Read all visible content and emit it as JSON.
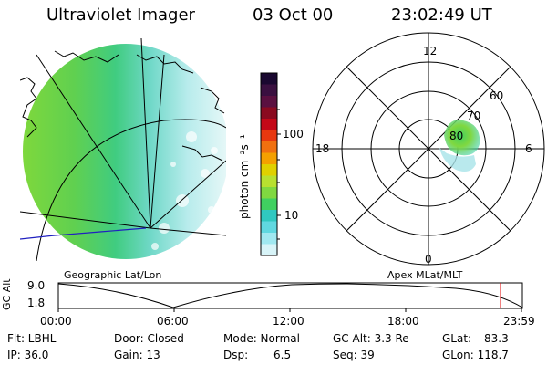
{
  "header": {
    "instrument": "Ultraviolet Imager",
    "date": "03 Oct 00",
    "time": "23:02:49 UT"
  },
  "colorbar": {
    "unit_label": "photon cm⁻²s⁻¹",
    "tick_100": "100",
    "tick_10": "10",
    "colors_top_to_bottom": [
      "#1a0830",
      "#3a1040",
      "#5a1040",
      "#8a0a20",
      "#c40818",
      "#e83810",
      "#f07010",
      "#f4a000",
      "#e0d000",
      "#b8e030",
      "#80d840",
      "#40d060",
      "#30c8c0",
      "#60d8e0",
      "#a0e8f0",
      "#d8f4f8"
    ]
  },
  "geo_map": {
    "caption": "Geographic Lat/Lon"
  },
  "polar_plot": {
    "caption": "Apex MLat/MLT",
    "mlt_12": "12",
    "mlt_18": "18",
    "mlt_6": "6",
    "mlt_0": "0",
    "lat_60": "60",
    "lat_70": "70",
    "lat_80": "80"
  },
  "altitude_plot": {
    "ylabel": "GC Alt",
    "y_top": "9.0",
    "y_bottom": "1.8",
    "x_ticks": [
      "00:00",
      "06:00",
      "12:00",
      "18:00",
      "23:59"
    ]
  },
  "status": {
    "flt": "Flt: LBHL",
    "ip": "IP: 36.0",
    "door": "Door: Closed",
    "gain": "Gain: 13",
    "mode": "Mode: Normal",
    "dsp": "Dsp:",
    "dsp_val": "6.5",
    "gcalt": "GC Alt: 3.3 Re",
    "seq": "Seq: 39",
    "glat": "GLat:",
    "glat_val": "83.3",
    "glon": "GLon: 118.7"
  }
}
